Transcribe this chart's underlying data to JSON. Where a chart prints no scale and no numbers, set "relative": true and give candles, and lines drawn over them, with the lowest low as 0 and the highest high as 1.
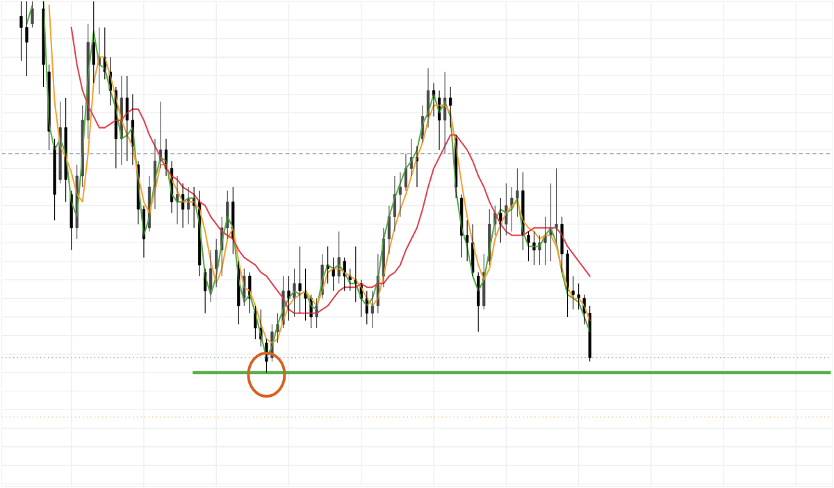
{
  "chart_data": {
    "type": "candlestick",
    "relative": true,
    "grid": true,
    "categories": [
      null,
      null,
      null,
      null,
      null,
      null,
      null,
      null,
      null,
      null,
      null,
      null,
      null,
      null,
      null,
      null,
      null,
      null,
      null,
      null,
      null,
      null,
      null,
      null,
      null,
      null,
      null,
      null,
      null,
      null,
      null,
      null,
      null,
      null,
      null,
      null,
      null,
      null,
      null,
      null,
      null,
      null,
      null,
      null,
      null,
      null,
      null,
      null,
      null,
      null,
      null,
      null,
      null,
      null,
      null,
      null,
      null,
      null,
      null,
      null,
      null,
      null,
      null,
      null,
      null,
      null,
      null,
      null,
      null,
      null,
      null,
      null,
      null,
      null,
      null,
      null,
      null,
      null,
      null,
      null,
      null,
      null,
      null,
      null,
      null,
      null,
      null,
      null,
      null,
      null,
      null,
      null,
      null,
      null,
      null,
      null,
      null,
      null,
      null,
      null,
      null,
      null,
      null,
      null,
      null,
      null,
      null,
      null,
      null,
      null,
      null,
      null,
      null,
      null,
      null,
      null,
      null,
      null,
      null,
      null,
      null,
      null,
      null,
      null,
      null,
      null,
      null,
      null,
      null,
      null,
      null,
      null,
      null,
      null,
      null,
      null,
      null,
      null,
      null,
      null,
      null,
      null,
      null,
      null,
      null,
      null,
      null,
      null,
      null
    ],
    "ohlc": [
      null,
      null,
      null,
      [
        0.96,
        1.0,
        0.84,
        0.93
      ],
      [
        0.93,
        1.0,
        0.8,
        0.89
      ],
      [
        0.94,
        1.0,
        0.93,
        0.98
      ],
      null,
      [
        0.98,
        1.0,
        0.77,
        0.83
      ],
      [
        0.81,
        0.83,
        0.6,
        0.65
      ],
      [
        0.61,
        0.63,
        0.41,
        0.48
      ],
      [
        0.52,
        0.73,
        0.51,
        0.66
      ],
      [
        0.66,
        0.74,
        0.46,
        0.52
      ],
      [
        0.48,
        0.49,
        0.33,
        0.39
      ],
      [
        0.39,
        0.56,
        0.36,
        0.53
      ],
      [
        0.53,
        0.72,
        0.5,
        0.68
      ],
      [
        0.68,
        0.94,
        0.63,
        0.89
      ],
      [
        0.89,
        1.0,
        0.78,
        0.83
      ],
      [
        0.83,
        0.93,
        0.75,
        0.85
      ],
      [
        0.85,
        0.93,
        0.79,
        0.81
      ],
      [
        0.81,
        0.85,
        0.72,
        0.76
      ],
      [
        0.76,
        0.77,
        0.55,
        0.63
      ],
      [
        0.63,
        0.8,
        0.56,
        0.74
      ],
      [
        0.74,
        0.8,
        0.57,
        0.68
      ],
      [
        0.68,
        0.75,
        0.56,
        0.61
      ],
      [
        0.56,
        0.57,
        0.4,
        0.44
      ],
      [
        0.44,
        0.45,
        0.31,
        0.36
      ],
      [
        0.39,
        0.53,
        0.38,
        0.5
      ],
      [
        0.5,
        0.63,
        0.44,
        0.57
      ],
      [
        0.57,
        0.73,
        0.55,
        0.6
      ],
      [
        0.6,
        0.63,
        0.53,
        0.55
      ],
      [
        0.55,
        0.57,
        0.43,
        0.46
      ],
      [
        0.46,
        0.53,
        0.4,
        0.48
      ],
      [
        0.48,
        0.51,
        0.39,
        0.44
      ],
      [
        0.44,
        0.5,
        0.4,
        0.47
      ],
      [
        0.47,
        0.5,
        0.39,
        0.45
      ],
      [
        0.46,
        0.49,
        0.26,
        0.29
      ],
      [
        0.27,
        0.28,
        0.16,
        0.22
      ],
      [
        0.22,
        0.33,
        0.19,
        0.28
      ],
      [
        0.28,
        0.36,
        0.23,
        0.33
      ],
      [
        0.33,
        0.42,
        0.26,
        0.39
      ],
      [
        0.39,
        0.49,
        0.36,
        0.46
      ],
      [
        0.46,
        0.5,
        0.32,
        0.36
      ],
      [
        0.29,
        0.3,
        0.13,
        0.18
      ],
      [
        0.2,
        0.28,
        0.18,
        0.26
      ],
      [
        0.26,
        0.27,
        0.16,
        0.2
      ],
      [
        0.17,
        0.18,
        0.09,
        0.12
      ],
      [
        0.12,
        0.17,
        0.07,
        0.09
      ],
      [
        0.08,
        0.09,
        0.0,
        0.03
      ],
      [
        0.04,
        0.13,
        0.03,
        0.11
      ],
      [
        0.11,
        0.16,
        0.08,
        0.13
      ],
      [
        0.13,
        0.26,
        0.12,
        0.22
      ],
      [
        0.22,
        0.26,
        0.14,
        0.2
      ],
      [
        0.2,
        0.28,
        0.15,
        0.24
      ],
      [
        0.24,
        0.34,
        0.16,
        0.22
      ],
      [
        0.22,
        0.28,
        0.14,
        0.2
      ],
      [
        0.2,
        0.21,
        0.12,
        0.15
      ],
      [
        0.15,
        0.2,
        0.12,
        0.18
      ],
      [
        0.21,
        0.32,
        0.2,
        0.29
      ],
      [
        0.29,
        0.34,
        0.24,
        0.28
      ],
      [
        0.28,
        0.31,
        0.22,
        0.26
      ],
      [
        0.26,
        0.38,
        0.24,
        0.31
      ],
      [
        0.3,
        0.31,
        0.22,
        0.26
      ],
      [
        0.26,
        0.28,
        0.22,
        0.25
      ],
      [
        0.25,
        0.34,
        0.19,
        0.24
      ],
      [
        0.24,
        0.25,
        0.15,
        0.2
      ],
      [
        0.2,
        0.22,
        0.13,
        0.16
      ],
      [
        0.16,
        0.22,
        0.12,
        0.18
      ],
      [
        0.18,
        0.32,
        0.16,
        0.26
      ],
      [
        0.26,
        0.39,
        0.23,
        0.36
      ],
      [
        0.36,
        0.45,
        0.32,
        0.42
      ],
      [
        0.42,
        0.53,
        0.38,
        0.48
      ],
      [
        0.48,
        0.54,
        0.42,
        0.5
      ],
      [
        0.5,
        0.59,
        0.49,
        0.55
      ],
      [
        0.55,
        0.63,
        0.53,
        0.58
      ],
      [
        0.58,
        0.61,
        0.5,
        0.57
      ],
      [
        0.63,
        0.72,
        0.62,
        0.69
      ],
      [
        0.69,
        0.82,
        0.66,
        0.76
      ],
      [
        0.76,
        0.78,
        0.69,
        0.74
      ],
      [
        0.74,
        0.76,
        0.6,
        0.68
      ],
      [
        0.68,
        0.81,
        0.59,
        0.74
      ],
      [
        0.74,
        0.77,
        0.66,
        0.72
      ],
      [
        0.63,
        0.64,
        0.47,
        0.5
      ],
      [
        0.47,
        0.48,
        0.31,
        0.37
      ],
      [
        0.37,
        0.41,
        0.3,
        0.35
      ],
      [
        0.35,
        0.4,
        0.26,
        0.27
      ],
      [
        0.26,
        0.27,
        0.11,
        0.18
      ],
      [
        0.18,
        0.32,
        0.17,
        0.27
      ],
      [
        0.3,
        0.44,
        0.29,
        0.4
      ],
      [
        0.4,
        0.45,
        0.37,
        0.43
      ],
      [
        0.43,
        0.47,
        0.35,
        0.4
      ],
      [
        0.4,
        0.51,
        0.37,
        0.45
      ],
      [
        0.45,
        0.5,
        0.38,
        0.47
      ],
      [
        0.47,
        0.55,
        0.42,
        0.49
      ],
      [
        0.49,
        0.54,
        0.33,
        0.37
      ],
      [
        0.37,
        0.38,
        0.3,
        0.35
      ],
      [
        0.35,
        0.38,
        0.29,
        0.33
      ],
      [
        0.33,
        0.37,
        0.29,
        0.35
      ],
      [
        0.35,
        0.42,
        0.29,
        0.37
      ],
      [
        0.37,
        0.51,
        0.3,
        0.39
      ],
      [
        0.39,
        0.55,
        0.35,
        0.4
      ],
      [
        0.4,
        0.42,
        0.27,
        0.32
      ],
      [
        0.32,
        0.33,
        0.15,
        0.22
      ],
      [
        0.22,
        0.26,
        0.17,
        0.21
      ],
      [
        0.21,
        0.24,
        0.17,
        0.2
      ],
      [
        0.2,
        0.21,
        0.13,
        0.16
      ],
      [
        0.16,
        0.18,
        0.03,
        0.04
      ],
      null,
      null,
      null,
      null,
      null,
      null,
      null,
      null,
      null,
      null,
      null,
      null,
      null,
      null,
      null,
      null,
      null,
      null,
      null,
      null,
      null,
      null,
      null,
      null,
      null,
      null,
      null,
      null,
      null,
      null,
      null,
      null,
      null,
      null,
      null,
      null,
      null,
      null,
      null,
      null,
      null,
      null,
      null
    ],
    "series": [
      {
        "type": "line",
        "color": "#5aab47",
        "values": [
          null,
          null,
          null,
          null,
          0.94,
          0.99,
          null,
          1.0,
          0.67,
          0.6,
          0.63,
          0.59,
          0.46,
          0.42,
          0.59,
          0.8,
          0.92,
          0.83,
          0.82,
          0.76,
          0.71,
          0.63,
          0.64,
          0.66,
          0.51,
          0.37,
          0.42,
          0.52,
          0.58,
          0.57,
          0.48,
          0.46,
          0.46,
          0.47,
          0.47,
          0.4,
          0.26,
          0.21,
          0.26,
          0.35,
          0.42,
          0.39,
          0.25,
          0.19,
          0.21,
          0.16,
          0.1,
          0.04,
          0.07,
          0.13,
          0.17,
          0.2,
          0.22,
          0.21,
          0.22,
          0.18,
          0.17,
          0.25,
          0.29,
          0.28,
          0.29,
          0.27,
          0.24,
          0.24,
          0.2,
          0.18,
          0.2,
          0.25,
          0.36,
          0.42,
          0.47,
          0.51,
          0.55,
          0.57,
          0.6,
          0.67,
          0.7,
          0.75,
          0.7,
          0.73,
          0.69,
          0.49,
          0.39,
          0.34,
          0.26,
          0.22,
          0.25,
          0.33,
          0.41,
          0.44,
          0.43,
          0.44,
          0.47,
          0.38,
          0.34,
          0.34,
          0.34,
          0.37,
          0.39,
          0.35,
          0.27,
          0.21,
          0.2,
          0.19,
          0.15,
          0.11,
          null,
          null,
          null,
          null,
          null,
          null,
          null,
          null,
          null,
          null,
          null,
          null,
          null,
          null,
          null,
          null,
          null,
          null,
          null,
          null,
          null,
          null,
          null,
          null,
          null,
          null,
          null,
          null,
          null,
          null,
          null,
          null,
          null,
          null,
          null,
          null,
          null,
          null,
          null,
          null,
          null,
          null,
          null
        ]
      },
      {
        "type": "line",
        "color": "#f7a233",
        "values": [
          null,
          null,
          null,
          null,
          null,
          null,
          null,
          null,
          0.99,
          0.73,
          0.61,
          0.58,
          0.54,
          0.48,
          0.46,
          0.59,
          0.78,
          0.85,
          0.85,
          0.8,
          0.74,
          0.68,
          0.64,
          0.61,
          0.53,
          0.46,
          0.43,
          0.49,
          0.56,
          0.56,
          0.52,
          0.49,
          0.46,
          0.46,
          0.46,
          0.44,
          0.38,
          0.3,
          0.24,
          0.28,
          0.36,
          0.39,
          0.3,
          0.23,
          0.22,
          0.18,
          0.13,
          0.09,
          0.08,
          0.09,
          0.14,
          0.18,
          0.2,
          0.21,
          0.22,
          0.2,
          0.18,
          0.22,
          0.27,
          0.28,
          0.28,
          0.27,
          0.26,
          0.25,
          0.23,
          0.2,
          0.18,
          0.2,
          0.26,
          0.33,
          0.39,
          0.44,
          0.48,
          0.53,
          0.58,
          0.62,
          0.68,
          0.72,
          0.72,
          0.72,
          0.7,
          0.61,
          0.51,
          0.42,
          0.35,
          0.29,
          0.25,
          0.28,
          0.36,
          0.4,
          0.43,
          0.45,
          0.46,
          0.41,
          0.39,
          0.38,
          0.36,
          0.37,
          0.37,
          0.34,
          0.28,
          0.23,
          0.2,
          0.2,
          0.18,
          0.14,
          null,
          null,
          null,
          null,
          null,
          null,
          null,
          null,
          null,
          null,
          null,
          null,
          null,
          null,
          null,
          null,
          null,
          null,
          null,
          null,
          null,
          null,
          null,
          null,
          null,
          null,
          null,
          null,
          null,
          null,
          null,
          null,
          null,
          null,
          null,
          null,
          null,
          null,
          null,
          null,
          null,
          null,
          null
        ]
      },
      {
        "type": "line",
        "color": "#e3424f",
        "values": [
          null,
          null,
          null,
          null,
          null,
          null,
          null,
          null,
          null,
          null,
          null,
          null,
          0.93,
          0.83,
          0.76,
          0.72,
          0.69,
          0.66,
          0.66,
          0.67,
          0.68,
          0.68,
          0.7,
          0.71,
          0.71,
          0.68,
          0.64,
          0.61,
          0.58,
          0.55,
          0.53,
          0.52,
          0.5,
          0.49,
          0.48,
          0.46,
          0.45,
          0.42,
          0.4,
          0.38,
          0.37,
          0.36,
          0.33,
          0.31,
          0.3,
          0.29,
          0.27,
          0.26,
          0.24,
          0.22,
          0.2,
          0.17,
          0.16,
          0.16,
          0.16,
          0.16,
          0.16,
          0.17,
          0.18,
          0.2,
          0.22,
          0.23,
          0.23,
          0.23,
          0.24,
          0.23,
          0.23,
          0.24,
          0.24,
          0.26,
          0.27,
          0.29,
          0.33,
          0.36,
          0.39,
          0.44,
          0.5,
          0.55,
          0.58,
          0.61,
          0.64,
          0.64,
          0.62,
          0.6,
          0.57,
          0.53,
          0.5,
          0.46,
          0.43,
          0.4,
          0.38,
          0.37,
          0.37,
          0.37,
          0.38,
          0.39,
          0.39,
          0.39,
          0.39,
          0.39,
          0.37,
          0.34,
          0.32,
          0.3,
          0.28,
          0.26,
          null,
          null,
          null,
          null,
          null,
          null,
          null,
          null,
          null,
          null,
          null,
          null,
          null,
          null,
          null,
          null,
          null,
          null,
          null,
          null,
          null,
          null,
          null,
          null,
          null,
          null,
          null,
          null,
          null,
          null,
          null,
          null,
          null,
          null,
          null,
          null,
          null,
          null,
          null,
          null,
          null,
          null,
          null
        ]
      },
      {
        "type": "line",
        "color": "#5cae4e",
        "values": [
          null,
          null,
          null,
          null,
          null,
          null,
          null,
          null,
          null,
          null,
          null,
          null,
          null,
          null,
          null,
          null,
          null,
          null,
          null,
          null,
          null,
          null,
          null,
          null,
          null,
          null,
          null,
          null,
          null,
          null,
          null,
          null,
          null,
          null,
          0,
          0,
          0,
          0,
          0,
          0,
          0,
          0,
          0,
          0,
          0,
          0,
          0,
          0,
          0,
          0,
          0,
          0,
          0,
          0,
          0,
          0,
          0,
          0,
          0,
          0,
          0,
          0,
          0,
          0,
          0,
          0,
          0,
          0,
          0,
          0,
          0,
          0,
          0,
          0,
          0,
          0,
          0,
          0,
          0,
          0,
          0,
          0,
          0,
          0,
          0,
          0,
          0,
          0,
          0,
          0,
          0,
          0,
          0,
          0,
          0,
          0,
          0,
          0,
          0,
          0,
          0,
          0,
          0,
          0,
          0,
          0,
          0,
          0,
          0,
          0,
          0,
          0,
          0,
          0,
          0,
          0,
          0,
          0,
          0,
          0,
          0,
          0,
          0,
          0,
          0,
          0,
          0,
          0,
          0,
          0,
          0,
          0,
          0,
          0,
          0,
          0,
          0,
          0,
          0,
          0,
          0,
          0,
          0,
          0,
          0,
          0,
          0,
          0,
          0
        ]
      }
    ],
    "ref_lines": [
      {
        "axis": "y",
        "value": 0.59,
        "color": "#9e9e9e",
        "line_style": "dashed"
      },
      {
        "axis": "y",
        "value": 0.04,
        "color": "#7aa0e8",
        "line_style": "dotted"
      },
      {
        "axis": "y",
        "value": -0.12,
        "color": "#f5c79a",
        "line_style": "dotted"
      }
    ]
  }
}
